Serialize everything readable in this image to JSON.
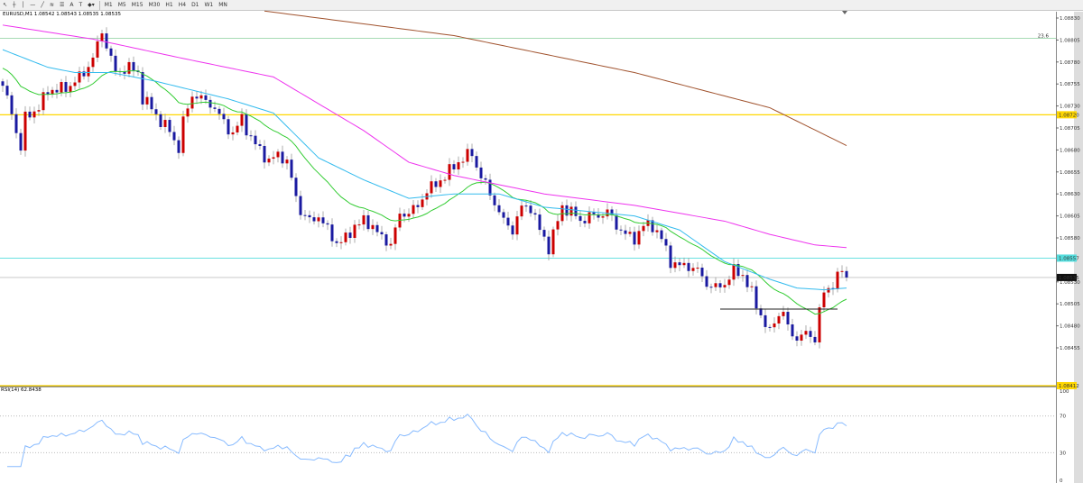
{
  "toolbar": {
    "tools": [
      "cursor-icon",
      "crosshair-icon",
      "vertical-line-icon",
      "horizontal-line-icon",
      "trendline-icon",
      "fibonacci-icon",
      "channel-icon",
      "text-icon",
      "label-icon",
      "shapes-icon"
    ],
    "text_tool": "A",
    "timeframes": [
      "M1",
      "M5",
      "M15",
      "M30",
      "H1",
      "H4",
      "D1",
      "W1",
      "MN"
    ]
  },
  "chart_title": "EURUSD,M1  1.08542 1.08543 1.08535 1.08535",
  "rsi_label": "RSI(14) 62.8438",
  "chart_data": {
    "type": "candlestick",
    "symbol": "EURUSD",
    "timeframe": "M1",
    "close_anchors": [
      [
        0,
        1.08753
      ],
      [
        2,
        1.08722
      ],
      [
        4,
        1.08681
      ],
      [
        5,
        1.08717
      ],
      [
        8,
        1.08728
      ],
      [
        10,
        1.08748
      ],
      [
        12,
        1.08748
      ],
      [
        15,
        1.08753
      ],
      [
        18,
        1.08768
      ],
      [
        20,
        1.08784
      ],
      [
        22,
        1.08815
      ],
      [
        23,
        1.08799
      ],
      [
        25,
        1.08768
      ],
      [
        28,
        1.08774
      ],
      [
        30,
        1.08768
      ],
      [
        31,
        1.08738
      ],
      [
        33,
        1.08728
      ],
      [
        35,
        1.08712
      ],
      [
        37,
        1.08702
      ],
      [
        39,
        1.08681
      ],
      [
        40,
        1.08712
      ],
      [
        42,
        1.08743
      ],
      [
        44,
        1.08738
      ],
      [
        46,
        1.08733
      ],
      [
        49,
        1.08712
      ],
      [
        51,
        1.08697
      ],
      [
        53,
        1.08717
      ],
      [
        55,
        1.08692
      ],
      [
        57,
        1.08681
      ],
      [
        59,
        1.08666
      ],
      [
        61,
        1.08676
      ],
      [
        63,
        1.08666
      ],
      [
        64,
        1.08646
      ],
      [
        66,
        1.0861
      ],
      [
        68,
        1.08599
      ],
      [
        70,
        1.08605
      ],
      [
        72,
        1.08589
      ],
      [
        74,
        1.08574
      ],
      [
        76,
        1.08579
      ],
      [
        78,
        1.08594
      ],
      [
        80,
        1.08599
      ],
      [
        82,
        1.08594
      ],
      [
        84,
        1.08579
      ],
      [
        86,
        1.08574
      ],
      [
        88,
        1.08605
      ],
      [
        90,
        1.0861
      ],
      [
        92,
        1.08615
      ],
      [
        94,
        1.08635
      ],
      [
        96,
        1.0864
      ],
      [
        98,
        1.08651
      ],
      [
        100,
        1.08661
      ],
      [
        102,
        1.08671
      ],
      [
        104,
        1.08676
      ],
      [
        105,
        1.08661
      ],
      [
        107,
        1.0864
      ],
      [
        109,
        1.0862
      ],
      [
        111,
        1.08599
      ],
      [
        113,
        1.08589
      ],
      [
        115,
        1.08615
      ],
      [
        117,
        1.08615
      ],
      [
        119,
        1.08589
      ],
      [
        121,
        1.08569
      ],
      [
        122,
        1.08584
      ],
      [
        124,
        1.08615
      ],
      [
        126,
        1.0861
      ],
      [
        128,
        1.08599
      ],
      [
        130,
        1.08605
      ],
      [
        132,
        1.08605
      ],
      [
        134,
        1.0861
      ],
      [
        136,
        1.08594
      ],
      [
        138,
        1.08584
      ],
      [
        140,
        1.08579
      ],
      [
        142,
        1.08594
      ],
      [
        144,
        1.08594
      ],
      [
        146,
        1.08579
      ],
      [
        148,
        1.08553
      ],
      [
        150,
        1.08548
      ],
      [
        152,
        1.08548
      ],
      [
        154,
        1.08543
      ],
      [
        156,
        1.08528
      ],
      [
        158,
        1.08523
      ],
      [
        160,
        1.08528
      ],
      [
        162,
        1.08543
      ],
      [
        164,
        1.08538
      ],
      [
        166,
        1.08517
      ],
      [
        168,
        1.08492
      ],
      [
        170,
        1.08471
      ],
      [
        171,
        1.08487
      ],
      [
        173,
        1.08497
      ],
      [
        174,
        1.08476
      ],
      [
        176,
        1.08466
      ],
      [
        178,
        1.08471
      ],
      [
        180,
        1.08466
      ],
      [
        181,
        1.08497
      ],
      [
        182,
        1.08517
      ],
      [
        184,
        1.08528
      ],
      [
        186,
        1.08543
      ],
      [
        187,
        1.08535
      ]
    ],
    "moving_averages": [
      {
        "color": "#33cc33",
        "ema_period": 21
      },
      {
        "color": "#33bbee",
        "anchors": [
          [
            0,
            1.08794
          ],
          [
            10,
            1.08774
          ],
          [
            16,
            1.08768
          ],
          [
            24,
            1.08768
          ],
          [
            34,
            1.08758
          ],
          [
            50,
            1.08738
          ],
          [
            60,
            1.08722
          ],
          [
            70,
            1.08671
          ],
          [
            80,
            1.08646
          ],
          [
            90,
            1.08625
          ],
          [
            100,
            1.0863
          ],
          [
            110,
            1.0863
          ],
          [
            120,
            1.08615
          ],
          [
            130,
            1.0861
          ],
          [
            140,
            1.08605
          ],
          [
            150,
            1.08589
          ],
          [
            160,
            1.08553
          ],
          [
            170,
            1.08533
          ],
          [
            176,
            1.08523
          ],
          [
            182,
            1.08521
          ],
          [
            187,
            1.08523
          ]
        ]
      },
      {
        "color": "#ee33ee",
        "anchors": [
          [
            0,
            1.08822
          ],
          [
            20,
            1.08806
          ],
          [
            40,
            1.08784
          ],
          [
            60,
            1.08763
          ],
          [
            80,
            1.08702
          ],
          [
            90,
            1.08666
          ],
          [
            100,
            1.08651
          ],
          [
            120,
            1.0863
          ],
          [
            140,
            1.08617
          ],
          [
            160,
            1.08599
          ],
          [
            170,
            1.08584
          ],
          [
            180,
            1.08572
          ],
          [
            187,
            1.08569
          ]
        ]
      },
      {
        "color": "#a0522d",
        "anchors": [
          [
            58,
            1.08838
          ],
          [
            100,
            1.0881
          ],
          [
            140,
            1.08768
          ],
          [
            170,
            1.08728
          ],
          [
            187,
            1.08685
          ]
        ]
      }
    ],
    "horizontal_lines": [
      {
        "price": 1.08807,
        "color": "#99d6aa",
        "label": "23.6"
      },
      {
        "price": 1.0872,
        "color": "#ffd700",
        "axis_label": "1.08720"
      },
      {
        "price": 1.08557,
        "color": "#55dddd",
        "axis_label": "1.08557"
      },
      {
        "price": 1.08535,
        "color": "#c0c0c0",
        "axis_label": "1.08535"
      },
      {
        "price": 1.08412,
        "color": "#ffd700",
        "axis_label": "1.08412"
      }
    ],
    "trend_segment": {
      "from_bar": 159,
      "to_bar": 185,
      "price": 1.08499,
      "color": "#222222"
    },
    "price_ticks": [
      "1.08830",
      "1.08805",
      "1.08780",
      "1.08755",
      "1.08730",
      "1.08705",
      "1.08680",
      "1.08655",
      "1.08630",
      "1.08605",
      "1.08580",
      "1.08530",
      "1.08505",
      "1.08480",
      "1.08455"
    ],
    "rsi": {
      "period": 14,
      "last": 62.8438,
      "levels": [
        70,
        30
      ],
      "ticks": [
        "100",
        "70",
        "30",
        "0"
      ],
      "color": "#88bbff"
    },
    "colors": {
      "bull": "#cc0000",
      "bear": "#1a1aa0",
      "wick": "#999999"
    }
  }
}
